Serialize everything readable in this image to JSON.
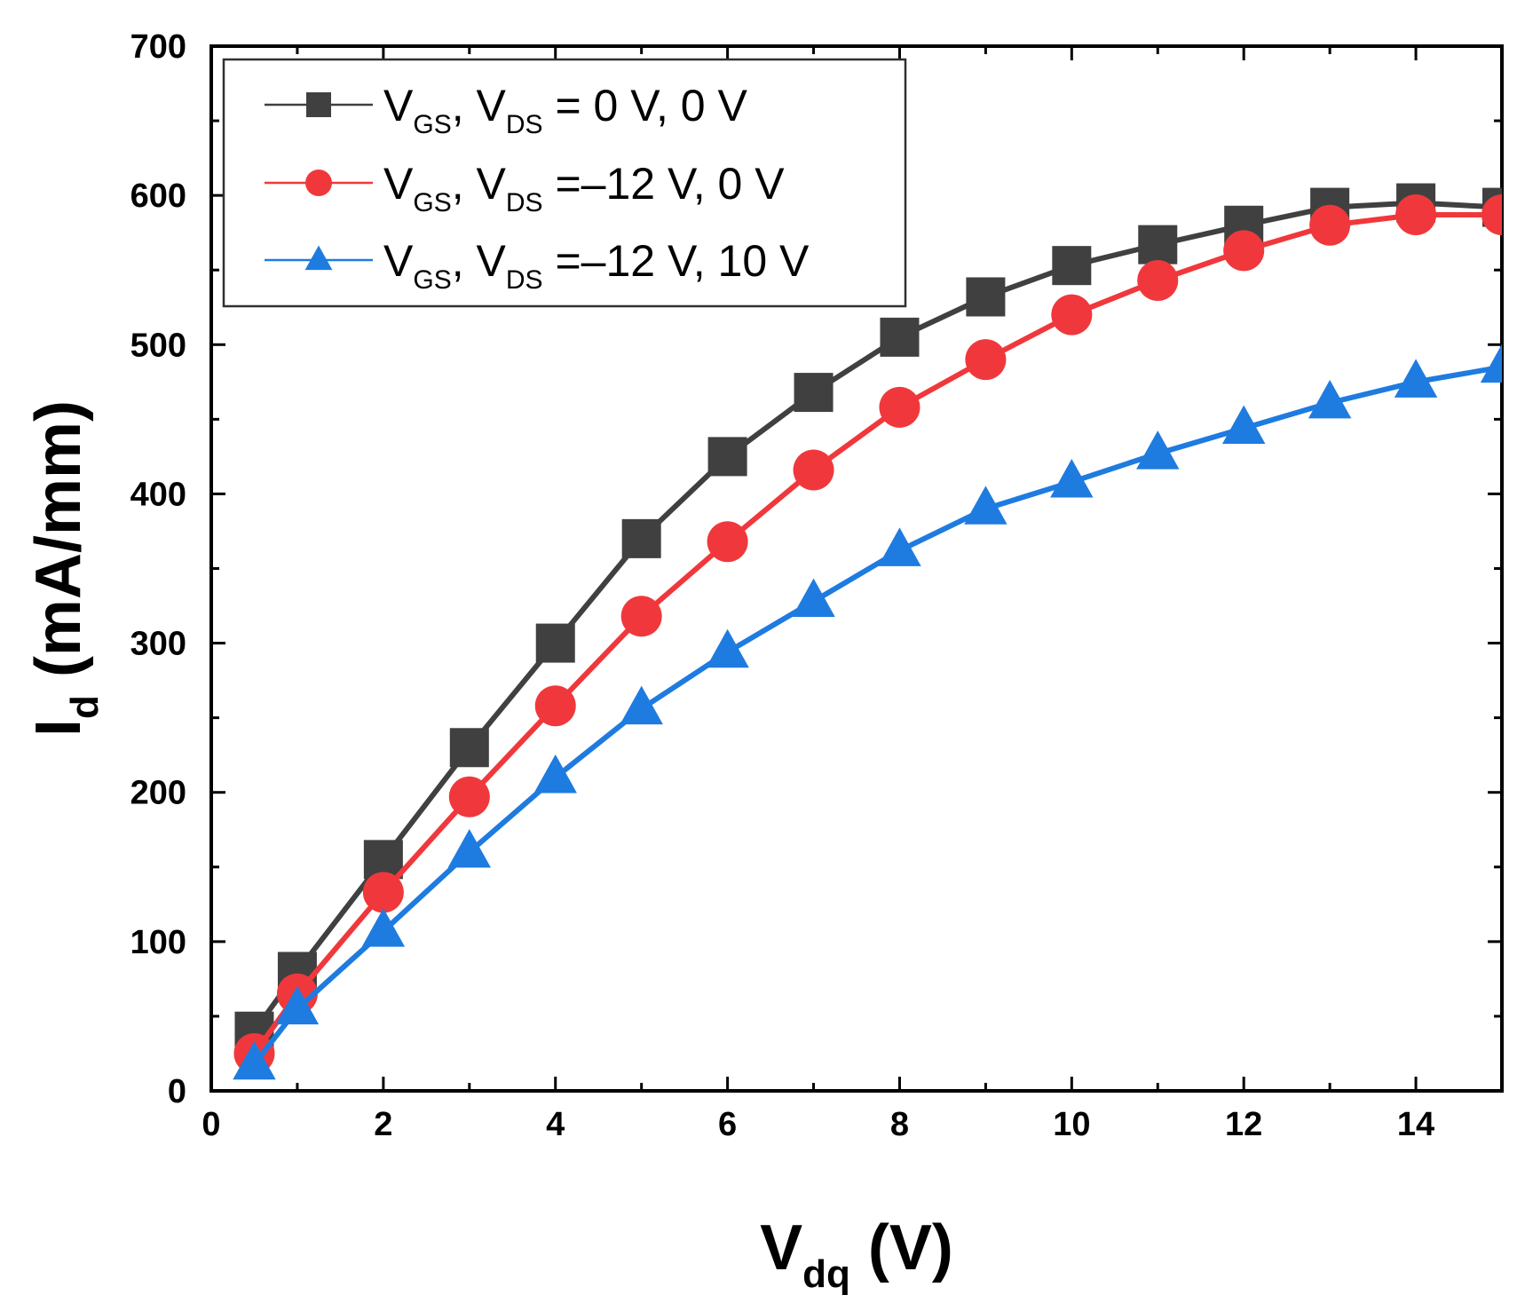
{
  "chart_data": {
    "type": "line",
    "xlabel": {
      "main": "V",
      "sub": "dq",
      "tail": " (V)"
    },
    "ylabel": {
      "main": "I",
      "sub": "d",
      "tail": " (mA/mm)"
    },
    "xlim": [
      0,
      15
    ],
    "ylim": [
      0,
      700
    ],
    "xticks": [
      0,
      2,
      4,
      6,
      8,
      10,
      12,
      14
    ],
    "yticks": [
      0,
      100,
      200,
      300,
      400,
      500,
      600,
      700
    ],
    "grid": false,
    "legend_position": "top-left",
    "x": [
      0.5,
      1,
      2,
      3,
      4,
      5,
      6,
      7,
      8,
      9,
      10,
      11,
      12,
      13,
      14,
      15
    ],
    "series": [
      {
        "name": "V_GS, V_DS = 0 V, 0 V",
        "legend": {
          "v1": "V",
          "s1": "GS",
          "sep": ", ",
          "v2": "V",
          "s2": "DS",
          "rest": " = 0 V, 0 V"
        },
        "marker": "square",
        "color": "#404040",
        "values": [
          40,
          80,
          155,
          230,
          300,
          370,
          425,
          468,
          505,
          532,
          553,
          567,
          580,
          592,
          595,
          592
        ]
      },
      {
        "name": "V_GS, V_DS =–12 V, 0 V",
        "legend": {
          "v1": "V",
          "s1": "GS",
          "sep": ", ",
          "v2": "V",
          "s2": "DS",
          "rest": " =–12 V, 0 V"
        },
        "marker": "circle",
        "color": "#f0383c",
        "values": [
          25,
          65,
          133,
          197,
          258,
          318,
          368,
          416,
          458,
          490,
          520,
          543,
          563,
          580,
          587,
          587
        ]
      },
      {
        "name": "V_GS, V_DS =–12 V, 10 V",
        "legend": {
          "v1": "V",
          "s1": "GS",
          "sep": ", ",
          "v2": "V",
          "s2": "DS",
          "rest": " =–12 V, 10 V"
        },
        "marker": "triangle",
        "color": "#1e7be0",
        "values": [
          18,
          55,
          107,
          160,
          210,
          256,
          294,
          328,
          362,
          390,
          408,
          427,
          444,
          461,
          475,
          485
        ]
      }
    ]
  }
}
